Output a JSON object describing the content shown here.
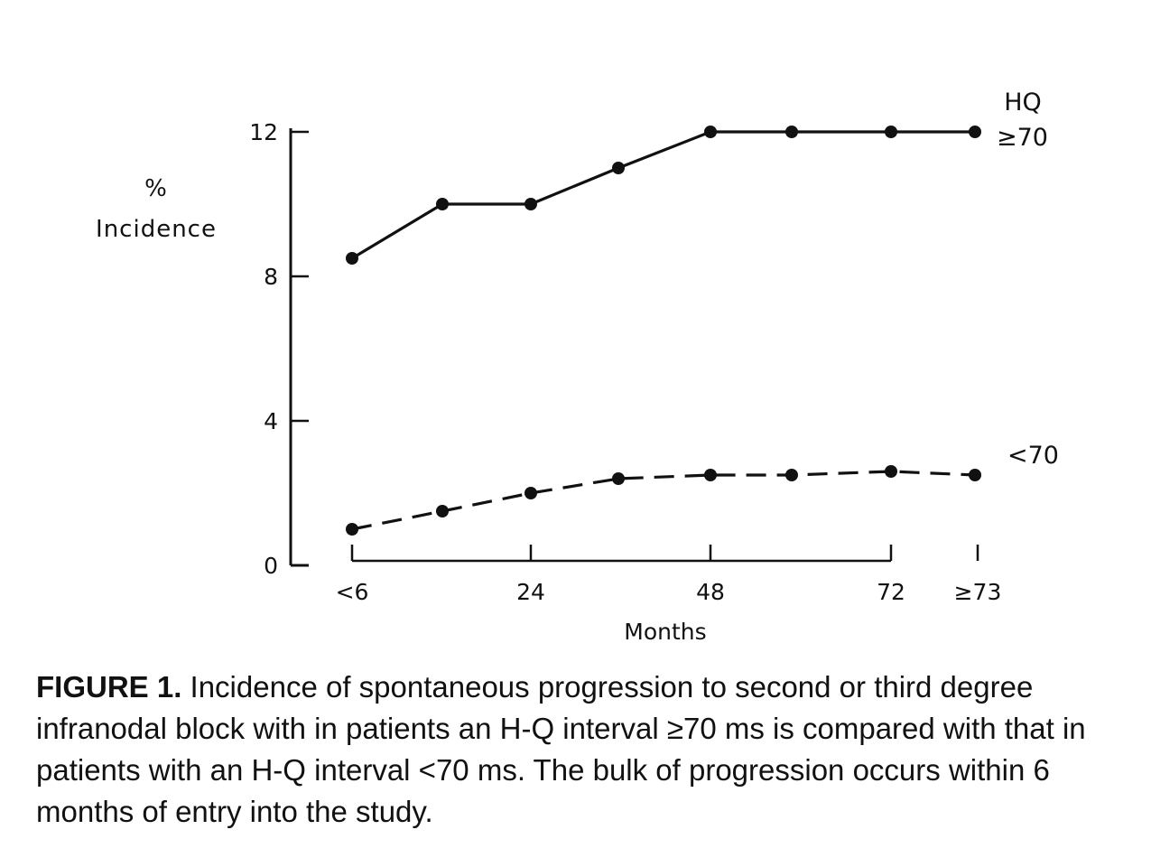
{
  "chart_data": {
    "type": "line",
    "ylabel_line1": "%",
    "ylabel_line2": "Incidence",
    "xlabel": "Months",
    "yticks": [
      "0",
      "4",
      "8",
      "12"
    ],
    "xticks": [
      "<6",
      "24",
      "48",
      "72",
      "≥73"
    ],
    "ylim": [
      0,
      12
    ],
    "grid": false,
    "x": [
      6,
      15,
      24,
      33,
      42,
      51,
      60,
      69,
      78
    ],
    "series": [
      {
        "name": "≥70",
        "group_label": "HQ",
        "style": "solid",
        "values": [
          8.5,
          10,
          10,
          11,
          12,
          12,
          12,
          12,
          12
        ]
      },
      {
        "name": "<70",
        "style": "dashed",
        "values": [
          1.0,
          1.5,
          2.0,
          2.4,
          2.5,
          2.5,
          2.6,
          2.5,
          3.0
        ]
      }
    ],
    "color": "#111111"
  },
  "caption": {
    "label": "FIGURE 1.",
    "text": "Incidence of spontaneous progression to second or third degree infranodal block with in patients an H-Q interval ≥70 ms is compared with that in patients with an H-Q interval <70 ms. The bulk of progression occurs within 6 months of entry into the study."
  }
}
